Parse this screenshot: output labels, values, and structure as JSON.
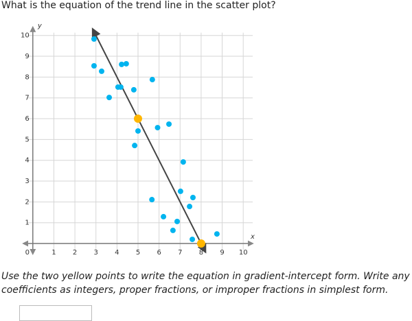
{
  "question": "What is the equation of the trend line in the scatter plot?",
  "instructions": [
    "Use the two yellow points to write the equation in gradient-intercept form. Write any",
    "coefficients as integers, proper fractions, or improper fractions in simplest form."
  ],
  "chart_data": {
    "type": "scatter",
    "xlabel": "x",
    "ylabel": "y",
    "xlim": [
      -0.45,
      10.45
    ],
    "ylim": [
      -0.5,
      10.4
    ],
    "xticks": [
      0,
      1,
      2,
      3,
      4,
      5,
      6,
      7,
      8,
      9,
      10
    ],
    "yticks": [
      1,
      2,
      3,
      4,
      5,
      6,
      7,
      8,
      9,
      10
    ],
    "grid": true,
    "grid_color": "#d6d6d6",
    "axis_color": "#777",
    "points": {
      "color": "#00b4ef",
      "x": [
        2.91,
        2.91,
        3.27,
        3.63,
        4.05,
        4.18,
        4.22,
        4.44,
        4.8,
        5.68,
        5.0,
        4.84,
        5.93,
        6.47,
        7.15,
        7.02,
        7.61,
        7.45,
        5.66,
        6.21,
        6.86,
        6.66,
        7.58,
        8.75
      ],
      "y": [
        9.83,
        8.54,
        8.28,
        7.02,
        7.52,
        7.52,
        8.61,
        8.64,
        7.39,
        7.88,
        5.41,
        4.71,
        5.57,
        5.74,
        3.92,
        2.51,
        2.21,
        1.78,
        2.11,
        1.29,
        1.06,
        0.63,
        0.2,
        0.46
      ]
    },
    "highlighted": {
      "color": "#ffb600",
      "x": [
        5,
        8
      ],
      "y": [
        6,
        0
      ]
    },
    "trend_line": {
      "color": "#444444",
      "x": [
        2.85,
        8.2
      ],
      "y": [
        10.3,
        -0.4
      ]
    }
  }
}
